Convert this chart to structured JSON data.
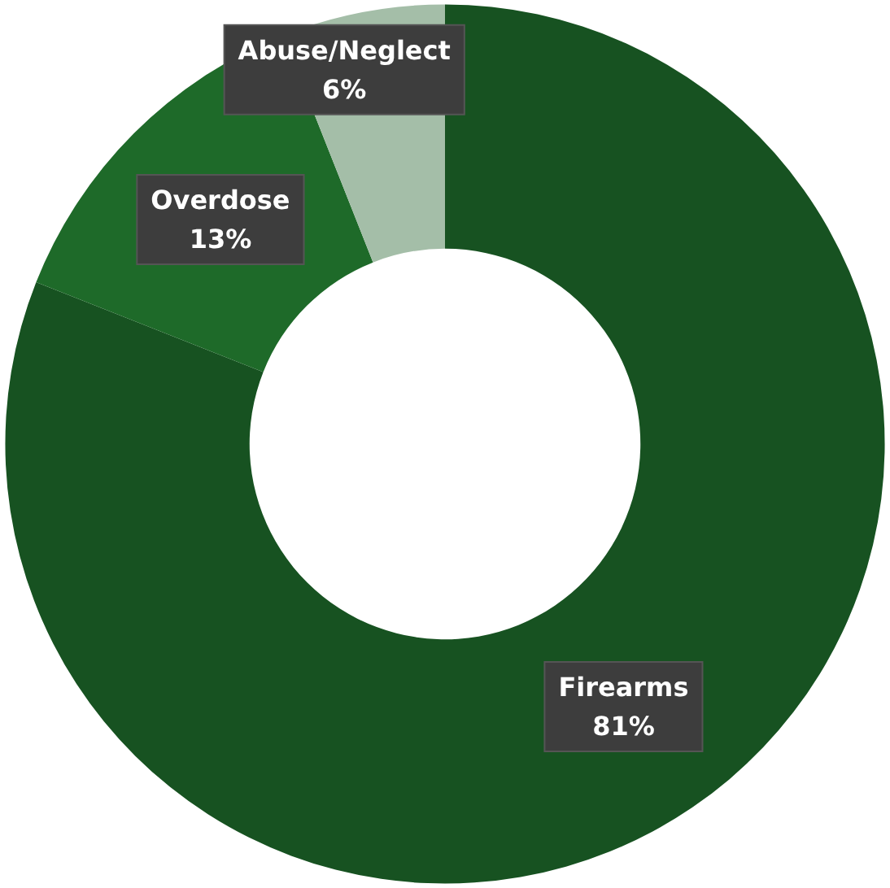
{
  "chart_data": {
    "type": "donut",
    "categories": [
      "Firearms",
      "Overdose",
      "Abuse/Neglect"
    ],
    "values": [
      81,
      13,
      6
    ],
    "value_labels": [
      "81%",
      "13%",
      "6%"
    ],
    "colors": [
      "#175221",
      "#1e6a29",
      "#a4bea8"
    ],
    "legend": false
  }
}
